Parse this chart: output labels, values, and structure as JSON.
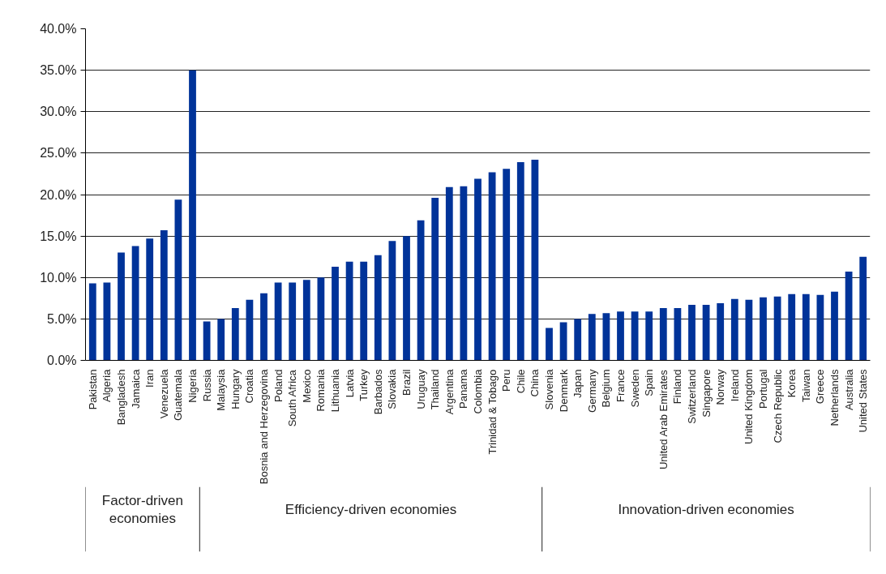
{
  "chart_data": {
    "type": "bar",
    "categories": [
      "Pakistan",
      "Algeria",
      "Bangladesh",
      "Jamaica",
      "Iran",
      "Venezuela",
      "Guatemala",
      "Nigeria",
      "Russia",
      "Malaysia",
      "Hungary",
      "Croatia",
      "Bosnia and Herzegovina",
      "Poland",
      "South Africa",
      "Mexico",
      "Romania",
      "Lithuania",
      "Latvia",
      "Turkey",
      "Barbados",
      "Slovakia",
      "Brazil",
      "Uruguay",
      "Thailand",
      "Argentina",
      "Panama",
      "Colombia",
      "Trinidad & Tobago",
      "Peru",
      "Chile",
      "China",
      "Slovenia",
      "Denmark",
      "Japan",
      "Germany",
      "Belgium",
      "France",
      "Sweden",
      "Spain",
      "United Arab Emirates",
      "Finland",
      "Switzerland",
      "Singapore",
      "Norway",
      "Ireland",
      "United Kingdom",
      "Portugal",
      "Czech Republic",
      "Korea",
      "Taiwan",
      "Greece",
      "Netherlands",
      "Australia",
      "United States"
    ],
    "values": [
      9.3,
      9.4,
      13.0,
      13.8,
      14.7,
      15.7,
      19.4,
      35.0,
      4.7,
      5.0,
      6.3,
      7.3,
      8.1,
      9.4,
      9.4,
      9.7,
      10.0,
      11.3,
      11.9,
      11.9,
      12.7,
      14.4,
      15.0,
      16.9,
      19.6,
      20.9,
      21.0,
      21.9,
      22.7,
      23.1,
      23.9,
      24.2,
      3.9,
      4.6,
      5.0,
      5.6,
      5.7,
      5.9,
      5.9,
      5.9,
      6.3,
      6.3,
      6.7,
      6.7,
      6.9,
      7.4,
      7.3,
      7.6,
      7.7,
      8.0,
      8.0,
      7.9,
      8.3,
      10.7,
      12.5
    ],
    "color": "#003399",
    "ylim": [
      0,
      40
    ],
    "yticks": [
      {
        "value": 0,
        "label": "0.0%"
      },
      {
        "value": 5,
        "label": "5.0%"
      },
      {
        "value": 10,
        "label": "10.0%"
      },
      {
        "value": 15,
        "label": "15.0%"
      },
      {
        "value": 20,
        "label": "20.0%"
      },
      {
        "value": 25,
        "label": "25.0%"
      },
      {
        "value": 30,
        "label": "30.0%"
      },
      {
        "value": 35,
        "label": "35.0%"
      },
      {
        "value": 40,
        "label": "40.0%"
      }
    ],
    "grid": "y",
    "annotations": [
      "Factor-driven economies",
      "Efficiency-driven economies",
      "Innovation-driven economies"
    ]
  }
}
